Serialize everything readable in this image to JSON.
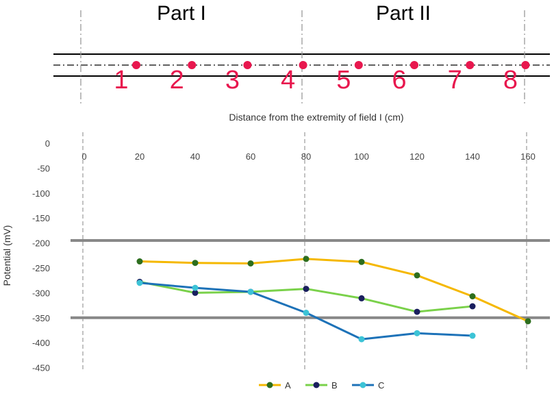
{
  "diagram": {
    "part_labels": [
      "Part I",
      "Part II"
    ],
    "node_labels": [
      "1",
      "2",
      "3",
      "4",
      "5",
      "6",
      "7",
      "8"
    ],
    "marker_color": "#e8174e"
  },
  "chart_data": {
    "type": "line",
    "xlabel": "Distance from the extremity of field I (cm)",
    "ylabel": "Potential (mV)",
    "x_ticks": [
      0,
      20,
      40,
      60,
      80,
      100,
      120,
      140,
      160
    ],
    "y_ticks": [
      0,
      -50,
      -100,
      -150,
      -200,
      -250,
      -300,
      -350,
      -400,
      -450
    ],
    "xlim": [
      -5,
      175
    ],
    "ylim": [
      -460,
      5
    ],
    "x_axis_position": "top",
    "vertical_dashed_lines_at": [
      0,
      80,
      160
    ],
    "reference_lines": [
      -195,
      -350
    ],
    "grid": false,
    "legend_position": "bottom",
    "series": [
      {
        "name": "A",
        "color": "#f5b800",
        "marker": "#2d6e1e",
        "x": [
          20,
          40,
          60,
          80,
          100,
          120,
          140,
          160
        ],
        "y": [
          -237,
          -240,
          -241,
          -232,
          -238,
          -265,
          -307,
          -357
        ]
      },
      {
        "name": "B",
        "color": "#7ad14a",
        "marker": "#1a1f5e",
        "x": [
          20,
          40,
          60,
          80,
          100,
          120,
          140
        ],
        "y": [
          -278,
          -300,
          -298,
          -292,
          -311,
          -338,
          -327
        ]
      },
      {
        "name": "C",
        "color": "#1d72b8",
        "marker": "#3cc3d6",
        "x": [
          20,
          40,
          60,
          80,
          100,
          120,
          140
        ],
        "y": [
          -280,
          -290,
          -298,
          -340,
          -393,
          -381,
          -386
        ]
      }
    ]
  }
}
